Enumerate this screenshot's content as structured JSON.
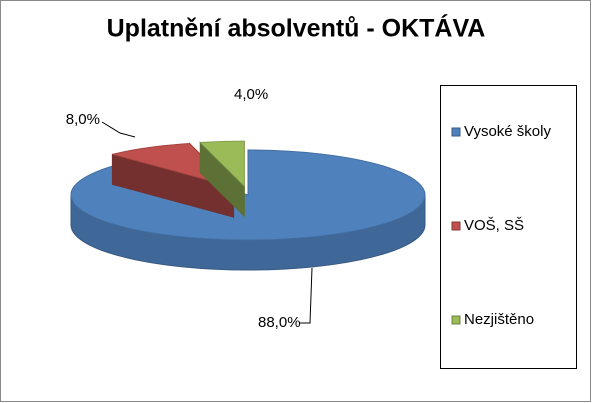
{
  "chart_data": {
    "type": "pie3d",
    "title": "Uplatnění absolventů - OKTÁVA",
    "categories": [
      "Vysoké školy",
      "VOŠ, SŠ",
      "Nezjištěno"
    ],
    "values": [
      88,
      8,
      4
    ],
    "value_labels": [
      "88,0%",
      "8,0%",
      "4,0%"
    ],
    "colors": [
      "#4f81bd",
      "#c0504d",
      "#9bbb59"
    ],
    "legend": "right"
  }
}
